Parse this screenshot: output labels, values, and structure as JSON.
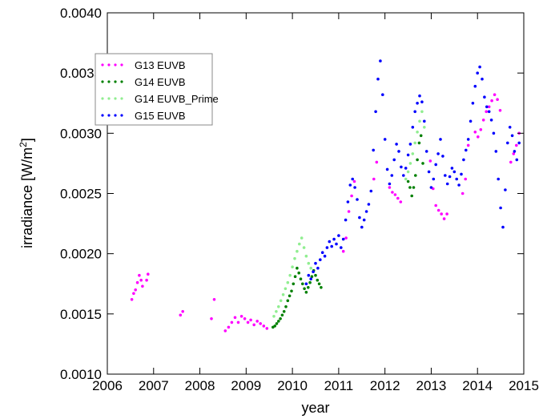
{
  "chart_data": {
    "type": "scatter",
    "title": "",
    "xlabel": "year",
    "ylabel": "irradiance [W/m",
    "ylabel_sup": "2",
    "ylabel_close": "]",
    "xlim": [
      2006,
      2015
    ],
    "ylim": [
      0.001,
      0.004
    ],
    "xticks": [
      2006,
      2007,
      2008,
      2009,
      2010,
      2011,
      2012,
      2013,
      2014,
      2015
    ],
    "xtick_labels": [
      "2006",
      "2007",
      "2008",
      "2009",
      "2010",
      "2011",
      "2012",
      "2013",
      "2014",
      "2015"
    ],
    "yticks": [
      0.001,
      0.0015,
      0.002,
      0.0025,
      0.003,
      0.0035,
      0.004
    ],
    "ytick_labels": [
      "0.0010",
      "0.0015",
      "0.0020",
      "0.0025",
      "0.0030",
      "0.0035",
      "0.0040"
    ],
    "grid": false,
    "legend": "top-left",
    "series": [
      {
        "name": "G13 EUVB",
        "color": "#ff00ff",
        "x": [
          2006.53,
          2006.57,
          2006.61,
          2006.65,
          2006.69,
          2006.73,
          2006.76,
          2006.85,
          2006.88,
          2007.58,
          2007.63,
          2008.25,
          2008.31,
          2008.55,
          2008.62,
          2008.69,
          2008.76,
          2008.83,
          2008.9,
          2008.97,
          2009.04,
          2009.1,
          2009.17,
          2009.24,
          2009.31,
          2009.38,
          2009.45,
          2011.1,
          2011.16,
          2011.22,
          2011.28,
          2011.34,
          2011.76,
          2011.82,
          2012.1,
          2012.16,
          2012.22,
          2012.28,
          2012.34,
          2012.98,
          2013.04,
          2013.1,
          2013.16,
          2013.22,
          2013.28,
          2013.34,
          2013.68,
          2013.74,
          2013.8,
          2013.95,
          2014.01,
          2014.07,
          2014.13,
          2014.19,
          2014.25,
          2014.31,
          2014.37,
          2014.43,
          2014.49,
          2014.72,
          2014.78,
          2014.84,
          2014.9
        ],
        "y": [
          0.00162,
          0.00167,
          0.0017,
          0.00176,
          0.00182,
          0.00178,
          0.00173,
          0.00178,
          0.00183,
          0.00149,
          0.00152,
          0.00146,
          0.00162,
          0.00136,
          0.00139,
          0.00143,
          0.00147,
          0.00143,
          0.00148,
          0.00146,
          0.00143,
          0.00145,
          0.00141,
          0.00144,
          0.00142,
          0.0014,
          0.00138,
          0.00202,
          0.00213,
          0.00235,
          0.00248,
          0.0026,
          0.00262,
          0.00276,
          0.00255,
          0.00251,
          0.00249,
          0.00246,
          0.00243,
          0.00277,
          0.00254,
          0.0024,
          0.00236,
          0.00233,
          0.00229,
          0.00233,
          0.0025,
          0.00262,
          0.0029,
          0.00301,
          0.00297,
          0.00303,
          0.00311,
          0.00318,
          0.00322,
          0.00327,
          0.00332,
          0.00328,
          0.00319,
          0.00276,
          0.00283,
          0.0029,
          0.003
        ]
      },
      {
        "name": "G14 EUVB",
        "color": "#008000",
        "x": [
          2009.58,
          2009.62,
          2009.66,
          2009.7,
          2009.74,
          2009.78,
          2009.82,
          2009.86,
          2009.9,
          2009.94,
          2009.98,
          2010.02,
          2010.06,
          2010.1,
          2010.14,
          2010.18,
          2010.22,
          2010.26,
          2010.3,
          2010.34,
          2010.38,
          2010.42,
          2010.46,
          2010.5,
          2010.54,
          2010.58,
          2010.62,
          2012.5,
          2012.54,
          2012.58,
          2012.62,
          2012.66,
          2012.7,
          2012.74,
          2012.78,
          2012.82
        ],
        "y": [
          0.00139,
          0.0014,
          0.00142,
          0.00144,
          0.00146,
          0.00149,
          0.00152,
          0.00156,
          0.00161,
          0.00165,
          0.00169,
          0.00175,
          0.00181,
          0.00188,
          0.00184,
          0.00179,
          0.00175,
          0.00171,
          0.00168,
          0.00172,
          0.00176,
          0.00181,
          0.00186,
          0.00182,
          0.00178,
          0.00175,
          0.00172,
          0.0026,
          0.00255,
          0.00248,
          0.00255,
          0.00265,
          0.00278,
          0.00292,
          0.00298,
          0.00275
        ]
      },
      {
        "name": "G14 EUVB_Prime",
        "color": "#90ee90",
        "x": [
          2009.6,
          2009.65,
          2009.7,
          2009.75,
          2009.8,
          2009.85,
          2009.9,
          2009.95,
          2010.0,
          2010.05,
          2010.1,
          2010.15,
          2010.2,
          2010.25,
          2010.3,
          2010.35,
          2010.4,
          2012.45,
          2012.5,
          2012.55,
          2012.6,
          2012.65,
          2012.7,
          2012.75,
          2012.8,
          2012.85
        ],
        "y": [
          0.00148,
          0.00152,
          0.00156,
          0.00161,
          0.00166,
          0.00171,
          0.00176,
          0.00182,
          0.00189,
          0.00196,
          0.00202,
          0.00208,
          0.00213,
          0.00205,
          0.00198,
          0.00192,
          0.00188,
          0.00262,
          0.00268,
          0.00275,
          0.00283,
          0.00292,
          0.00301,
          0.0031,
          0.00318,
          0.00305
        ]
      },
      {
        "name": "G15 EUVB",
        "color": "#0000ff",
        "x": [
          2010.3,
          2010.35,
          2010.4,
          2010.45,
          2010.5,
          2010.55,
          2010.6,
          2010.65,
          2010.7,
          2010.75,
          2010.8,
          2010.85,
          2010.9,
          2010.95,
          2011.0,
          2011.05,
          2011.1,
          2011.15,
          2011.2,
          2011.25,
          2011.3,
          2011.35,
          2011.4,
          2011.45,
          2011.5,
          2011.55,
          2011.6,
          2011.65,
          2011.7,
          2011.75,
          2011.8,
          2011.85,
          2011.9,
          2011.95,
          2012.0,
          2012.05,
          2012.1,
          2012.15,
          2012.2,
          2012.25,
          2012.3,
          2012.35,
          2012.4,
          2012.45,
          2012.5,
          2012.55,
          2012.6,
          2012.65,
          2012.7,
          2012.75,
          2012.8,
          2012.85,
          2012.9,
          2012.95,
          2013.0,
          2013.05,
          2013.1,
          2013.15,
          2013.2,
          2013.25,
          2013.3,
          2013.35,
          2013.4,
          2013.45,
          2013.5,
          2013.55,
          2013.6,
          2013.65,
          2013.7,
          2013.75,
          2013.8,
          2013.85,
          2013.9,
          2013.95,
          2014.0,
          2014.05,
          2014.1,
          2014.15,
          2014.2,
          2014.25,
          2014.3,
          2014.35,
          2014.4,
          2014.45,
          2014.5,
          2014.55,
          2014.6,
          2014.65,
          2014.7,
          2014.75,
          2014.8,
          2014.85,
          2014.9
        ],
        "y": [
          0.00175,
          0.00182,
          0.00179,
          0.00185,
          0.00192,
          0.00188,
          0.00195,
          0.00201,
          0.00198,
          0.00205,
          0.0021,
          0.00206,
          0.00212,
          0.00208,
          0.00215,
          0.00205,
          0.00212,
          0.00228,
          0.00243,
          0.00257,
          0.00262,
          0.00255,
          0.00245,
          0.0023,
          0.00222,
          0.00228,
          0.00235,
          0.00241,
          0.00252,
          0.00286,
          0.00318,
          0.00345,
          0.0036,
          0.00332,
          0.00295,
          0.0027,
          0.00258,
          0.00265,
          0.00278,
          0.00291,
          0.00285,
          0.00272,
          0.00265,
          0.00271,
          0.00282,
          0.00291,
          0.00305,
          0.00318,
          0.00325,
          0.00331,
          0.00326,
          0.0031,
          0.00285,
          0.00268,
          0.00255,
          0.00262,
          0.00274,
          0.00283,
          0.00295,
          0.00281,
          0.00265,
          0.00258,
          0.00264,
          0.00271,
          0.00268,
          0.00262,
          0.00257,
          0.00266,
          0.00278,
          0.00286,
          0.00295,
          0.0031,
          0.00325,
          0.00339,
          0.0035,
          0.00355,
          0.00345,
          0.0033,
          0.00322,
          0.00318,
          0.00311,
          0.003,
          0.00285,
          0.00262,
          0.00238,
          0.00222,
          0.00253,
          0.00292,
          0.00305,
          0.00298,
          0.00285,
          0.00278,
          0.00292
        ]
      }
    ]
  }
}
